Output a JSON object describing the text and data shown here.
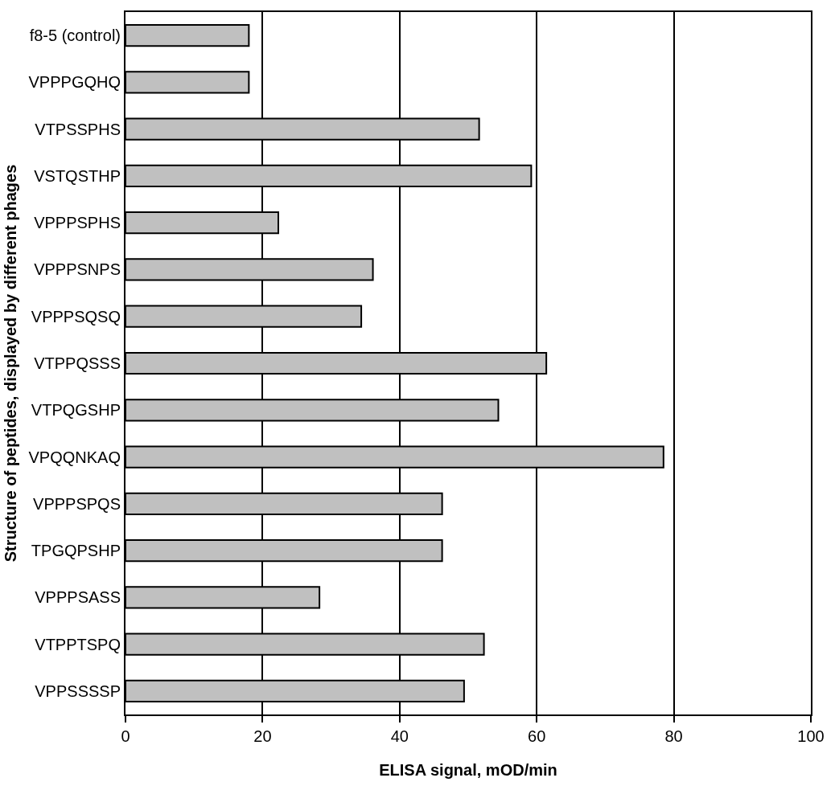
{
  "chart_data": {
    "type": "bar",
    "orientation": "horizontal",
    "xlabel": "ELISA signal, mOD/min",
    "ylabel": "Structure of peptides, displayed by different phages",
    "categories": [
      "f8-5 (control)",
      "VPPPGQHQ",
      "VTPSSPHS",
      "VSTQSTHP",
      "VPPPSPHS",
      "VPPPSNPS",
      "VPPPSQSQ",
      "VTPPQSSS",
      "VTPQGSHP",
      "VPQQNKAQ",
      "VPPPSPQS",
      "TPGQPSHP",
      "VPPPSASS",
      "VTPPTSPQ",
      "VPPSSSSP"
    ],
    "values": [
      18,
      18,
      51.6,
      59.2,
      22.3,
      36.1,
      34.4,
      61.4,
      54.4,
      78.5,
      46.2,
      46.2,
      28.3,
      52.3,
      49.4
    ],
    "color": "#c0c0c0",
    "xlim": [
      0,
      100
    ],
    "xticks": [
      0,
      20,
      40,
      60,
      80,
      100
    ],
    "grid": "x"
  }
}
